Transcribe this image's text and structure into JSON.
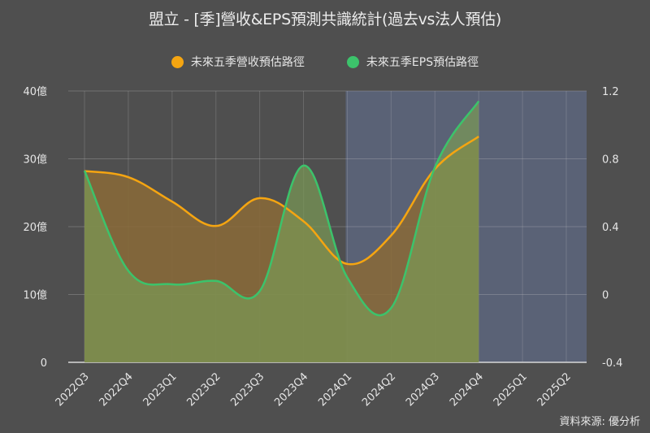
{
  "title": "盟立 - [季]營收&EPS預測共識統計(過去vs法人預估)",
  "legend": [
    {
      "label": "未來五季營收預估路徑",
      "color": "#f5a511"
    },
    {
      "label": "未來五季EPS預估路徑",
      "color": "#3cc36b"
    }
  ],
  "source": "資料來源: 優分析",
  "colors": {
    "background": "#4f4f4f",
    "forecast_band": "#5a6276",
    "revenue_line": "#f5a511",
    "revenue_fill": "#8a6a37",
    "eps_line": "#3cc36b",
    "eps_fill": "#7a9a55",
    "grid": "#6d6d6d"
  },
  "chart_data": {
    "type": "area",
    "title": "盟立 - [季]營收&EPS預測共識統計(過去vs法人預估)",
    "categories": [
      "2022Q3",
      "2022Q4",
      "2023Q1",
      "2023Q2",
      "2023Q3",
      "2023Q4",
      "2024Q1",
      "2024Q2",
      "2024Q3",
      "2024Q4",
      "2025Q1",
      "2025Q2"
    ],
    "series": [
      {
        "name": "未來五季營收預估路徑",
        "axis": "left",
        "unit": "億",
        "values": [
          28.2,
          27.3,
          23.7,
          20.1,
          24.2,
          20.8,
          14.5,
          18.7,
          28.5,
          33.3,
          null,
          null
        ]
      },
      {
        "name": "未來五季EPS預估路徑",
        "axis": "right",
        "values": [
          0.73,
          0.14,
          0.06,
          0.08,
          0.02,
          0.76,
          0.1,
          -0.08,
          0.75,
          1.14,
          null,
          null
        ]
      }
    ],
    "y_left": {
      "ticks": [
        "0",
        "10億",
        "20億",
        "30億",
        "40億"
      ],
      "values": [
        0,
        10,
        20,
        30,
        40
      ],
      "range": [
        0,
        40
      ]
    },
    "y_right": {
      "ticks": [
        "-0.4",
        "0",
        "0.4",
        "0.8",
        "1.2"
      ],
      "values": [
        -0.4,
        0,
        0.4,
        0.8,
        1.2
      ],
      "range": [
        -0.4,
        1.2
      ]
    },
    "forecast_region": {
      "from": "2024Q1",
      "to": "2025Q2"
    },
    "grid": true,
    "legend_position": "top"
  }
}
